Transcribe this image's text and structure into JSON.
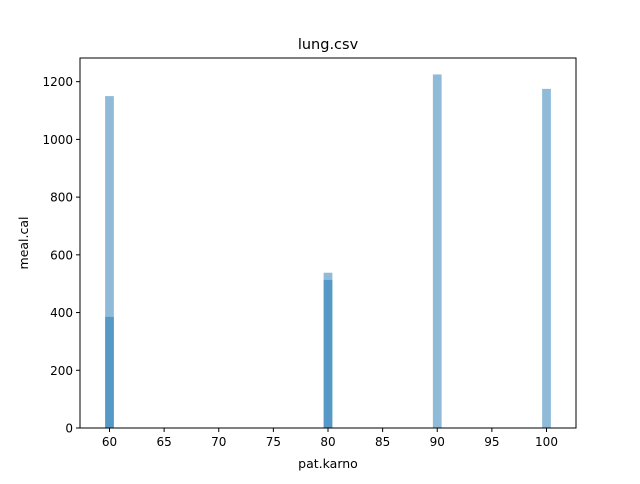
{
  "chart_data": {
    "type": "bar",
    "title": "lung.csv",
    "xlabel": "pat.karno",
    "ylabel": "meal.cal",
    "xlim": [
      57.3,
      102.7
    ],
    "ylim": [
      0,
      1282
    ],
    "xticks": [
      60,
      65,
      70,
      75,
      80,
      85,
      90,
      95,
      100
    ],
    "yticks": [
      0,
      200,
      400,
      600,
      800,
      1000,
      1200
    ],
    "bar_width": 0.8,
    "grid": false,
    "legend": "none",
    "bar_color": "#1f77b4",
    "bar_alpha": 0.5,
    "bars": [
      {
        "x": 60,
        "value": 1150
      },
      {
        "x": 60,
        "value": 385
      },
      {
        "x": 80,
        "value": 538
      },
      {
        "x": 80,
        "value": 513
      },
      {
        "x": 90,
        "value": 1225
      },
      {
        "x": 100,
        "value": 1175
      }
    ]
  }
}
